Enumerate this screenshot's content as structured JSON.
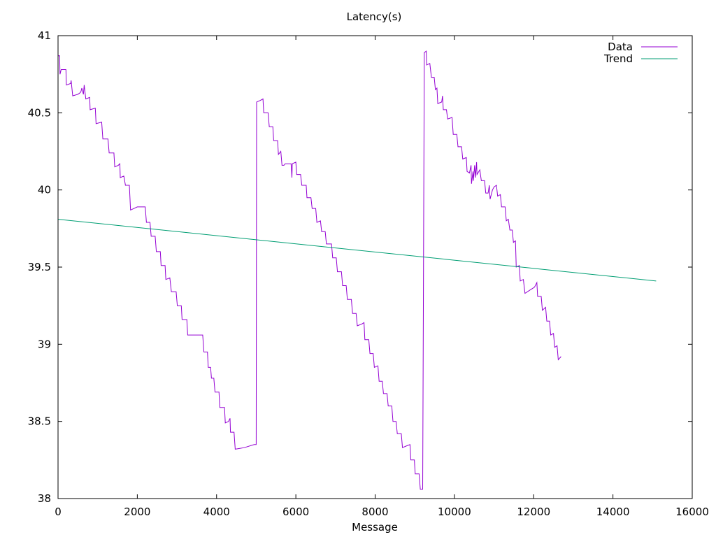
{
  "chart_data": {
    "type": "line",
    "title": "Latency(s)",
    "xlabel": "Message",
    "ylabel": "",
    "xlim": [
      0,
      16000
    ],
    "ylim": [
      38,
      41
    ],
    "x_ticks": [
      0,
      2000,
      4000,
      6000,
      8000,
      10000,
      12000,
      14000,
      16000
    ],
    "x_tick_labels": [
      "0",
      "2000",
      "4000",
      "6000",
      "8000",
      "10000",
      "12000",
      "14000",
      "16000"
    ],
    "y_ticks": [
      38,
      38.5,
      39,
      39.5,
      40,
      40.5,
      41
    ],
    "y_tick_labels": [
      "38",
      "38.5",
      "39",
      "39.5",
      "40",
      "40.5",
      "41"
    ],
    "grid": false,
    "legend_position": "top-right",
    "series": [
      {
        "name": "Data",
        "color": "#9400D3",
        "points": [
          [
            0,
            40.87
          ],
          [
            40,
            40.87
          ],
          [
            50,
            40.75
          ],
          [
            80,
            40.78
          ],
          [
            200,
            40.78
          ],
          [
            210,
            40.68
          ],
          [
            320,
            40.69
          ],
          [
            330,
            40.71
          ],
          [
            370,
            40.61
          ],
          [
            500,
            40.62
          ],
          [
            560,
            40.63
          ],
          [
            580,
            40.64
          ],
          [
            600,
            40.66
          ],
          [
            640,
            40.62
          ],
          [
            660,
            40.68
          ],
          [
            700,
            40.59
          ],
          [
            800,
            40.6
          ],
          [
            810,
            40.52
          ],
          [
            940,
            40.53
          ],
          [
            960,
            40.43
          ],
          [
            1100,
            40.44
          ],
          [
            1130,
            40.33
          ],
          [
            1260,
            40.33
          ],
          [
            1290,
            40.24
          ],
          [
            1410,
            40.24
          ],
          [
            1430,
            40.15
          ],
          [
            1520,
            40.16
          ],
          [
            1560,
            40.17
          ],
          [
            1570,
            40.08
          ],
          [
            1660,
            40.09
          ],
          [
            1700,
            40.03
          ],
          [
            1800,
            40.03
          ],
          [
            1830,
            39.87
          ],
          [
            2000,
            39.89
          ],
          [
            2200,
            39.89
          ],
          [
            2230,
            39.79
          ],
          [
            2320,
            39.79
          ],
          [
            2350,
            39.7
          ],
          [
            2450,
            39.7
          ],
          [
            2480,
            39.6
          ],
          [
            2580,
            39.6
          ],
          [
            2600,
            39.51
          ],
          [
            2700,
            39.51
          ],
          [
            2720,
            39.42
          ],
          [
            2820,
            39.43
          ],
          [
            2860,
            39.34
          ],
          [
            2980,
            39.34
          ],
          [
            3010,
            39.25
          ],
          [
            3110,
            39.25
          ],
          [
            3130,
            39.16
          ],
          [
            3250,
            39.16
          ],
          [
            3270,
            39.06
          ],
          [
            3650,
            39.06
          ],
          [
            3680,
            38.95
          ],
          [
            3770,
            38.95
          ],
          [
            3790,
            38.85
          ],
          [
            3850,
            38.85
          ],
          [
            3870,
            38.78
          ],
          [
            3930,
            38.78
          ],
          [
            3960,
            38.69
          ],
          [
            4060,
            38.69
          ],
          [
            4080,
            38.59
          ],
          [
            4200,
            38.59
          ],
          [
            4220,
            38.49
          ],
          [
            4300,
            38.5
          ],
          [
            4340,
            38.52
          ],
          [
            4350,
            38.43
          ],
          [
            4440,
            38.43
          ],
          [
            4470,
            38.32
          ],
          [
            4700,
            38.33
          ],
          [
            4950,
            38.35
          ],
          [
            5000,
            38.35
          ],
          [
            5010,
            40.57
          ],
          [
            5100,
            40.58
          ],
          [
            5170,
            40.59
          ],
          [
            5190,
            40.5
          ],
          [
            5300,
            40.5
          ],
          [
            5330,
            40.41
          ],
          [
            5420,
            40.41
          ],
          [
            5440,
            40.32
          ],
          [
            5540,
            40.32
          ],
          [
            5560,
            40.23
          ],
          [
            5620,
            40.25
          ],
          [
            5650,
            40.16
          ],
          [
            5700,
            40.16
          ],
          [
            5730,
            40.17
          ],
          [
            5880,
            40.17
          ],
          [
            5900,
            40.08
          ],
          [
            5910,
            40.17
          ],
          [
            6000,
            40.18
          ],
          [
            6020,
            40.1
          ],
          [
            6120,
            40.1
          ],
          [
            6150,
            40.03
          ],
          [
            6260,
            40.03
          ],
          [
            6280,
            39.95
          ],
          [
            6380,
            39.95
          ],
          [
            6410,
            39.88
          ],
          [
            6500,
            39.88
          ],
          [
            6530,
            39.79
          ],
          [
            6620,
            39.8
          ],
          [
            6650,
            39.73
          ],
          [
            6740,
            39.73
          ],
          [
            6770,
            39.65
          ],
          [
            6900,
            39.65
          ],
          [
            6930,
            39.56
          ],
          [
            7020,
            39.56
          ],
          [
            7050,
            39.47
          ],
          [
            7150,
            39.47
          ],
          [
            7180,
            39.38
          ],
          [
            7270,
            39.38
          ],
          [
            7300,
            39.29
          ],
          [
            7400,
            39.29
          ],
          [
            7430,
            39.2
          ],
          [
            7520,
            39.2
          ],
          [
            7550,
            39.12
          ],
          [
            7660,
            39.13
          ],
          [
            7720,
            39.14
          ],
          [
            7740,
            39.03
          ],
          [
            7840,
            39.03
          ],
          [
            7870,
            38.94
          ],
          [
            7950,
            38.94
          ],
          [
            7980,
            38.85
          ],
          [
            8070,
            38.86
          ],
          [
            8100,
            38.76
          ],
          [
            8180,
            38.76
          ],
          [
            8210,
            38.68
          ],
          [
            8300,
            38.68
          ],
          [
            8330,
            38.6
          ],
          [
            8420,
            38.6
          ],
          [
            8450,
            38.5
          ],
          [
            8530,
            38.5
          ],
          [
            8560,
            38.42
          ],
          [
            8660,
            38.42
          ],
          [
            8690,
            38.33
          ],
          [
            8780,
            38.34
          ],
          [
            8880,
            38.35
          ],
          [
            8900,
            38.25
          ],
          [
            8990,
            38.25
          ],
          [
            9010,
            38.16
          ],
          [
            9110,
            38.16
          ],
          [
            9140,
            38.06
          ],
          [
            9200,
            38.06
          ],
          [
            9220,
            39.49
          ],
          [
            9240,
            40.89
          ],
          [
            9290,
            40.9
          ],
          [
            9300,
            40.81
          ],
          [
            9380,
            40.82
          ],
          [
            9420,
            40.73
          ],
          [
            9490,
            40.73
          ],
          [
            9520,
            40.65
          ],
          [
            9560,
            40.66
          ],
          [
            9580,
            40.56
          ],
          [
            9680,
            40.57
          ],
          [
            9700,
            40.61
          ],
          [
            9720,
            40.52
          ],
          [
            9800,
            40.52
          ],
          [
            9830,
            40.46
          ],
          [
            9940,
            40.47
          ],
          [
            9970,
            40.36
          ],
          [
            10060,
            40.36
          ],
          [
            10090,
            40.28
          ],
          [
            10180,
            40.28
          ],
          [
            10210,
            40.2
          ],
          [
            10300,
            40.21
          ],
          [
            10320,
            40.12
          ],
          [
            10380,
            40.11
          ],
          [
            10420,
            40.16
          ],
          [
            10430,
            40.04
          ],
          [
            10470,
            40.12
          ],
          [
            10480,
            40.06
          ],
          [
            10510,
            40.16
          ],
          [
            10530,
            40.08
          ],
          [
            10560,
            40.18
          ],
          [
            10570,
            40.1
          ],
          [
            10640,
            40.13
          ],
          [
            10680,
            40.06
          ],
          [
            10760,
            40.06
          ],
          [
            10790,
            39.98
          ],
          [
            10850,
            39.98
          ],
          [
            10880,
            40.03
          ],
          [
            10900,
            39.94
          ],
          [
            10960,
            40.0
          ],
          [
            11000,
            40.02
          ],
          [
            11060,
            40.03
          ],
          [
            11090,
            39.96
          ],
          [
            11160,
            39.97
          ],
          [
            11190,
            39.89
          ],
          [
            11280,
            39.89
          ],
          [
            11310,
            39.8
          ],
          [
            11360,
            39.81
          ],
          [
            11400,
            39.74
          ],
          [
            11460,
            39.74
          ],
          [
            11490,
            39.66
          ],
          [
            11540,
            39.67
          ],
          [
            11560,
            39.5
          ],
          [
            11640,
            39.51
          ],
          [
            11660,
            39.41
          ],
          [
            11740,
            39.42
          ],
          [
            11780,
            39.33
          ],
          [
            11900,
            39.35
          ],
          [
            12020,
            39.37
          ],
          [
            12080,
            39.4
          ],
          [
            12100,
            39.31
          ],
          [
            12190,
            39.31
          ],
          [
            12220,
            39.22
          ],
          [
            12300,
            39.24
          ],
          [
            12330,
            39.15
          ],
          [
            12400,
            39.15
          ],
          [
            12430,
            39.06
          ],
          [
            12500,
            39.07
          ],
          [
            12530,
            38.98
          ],
          [
            12590,
            38.99
          ],
          [
            12620,
            38.9
          ],
          [
            12690,
            38.92
          ]
        ]
      },
      {
        "name": "Trend",
        "color": "#009E73",
        "points": [
          [
            0,
            39.81
          ],
          [
            15090,
            39.41
          ]
        ]
      }
    ]
  }
}
